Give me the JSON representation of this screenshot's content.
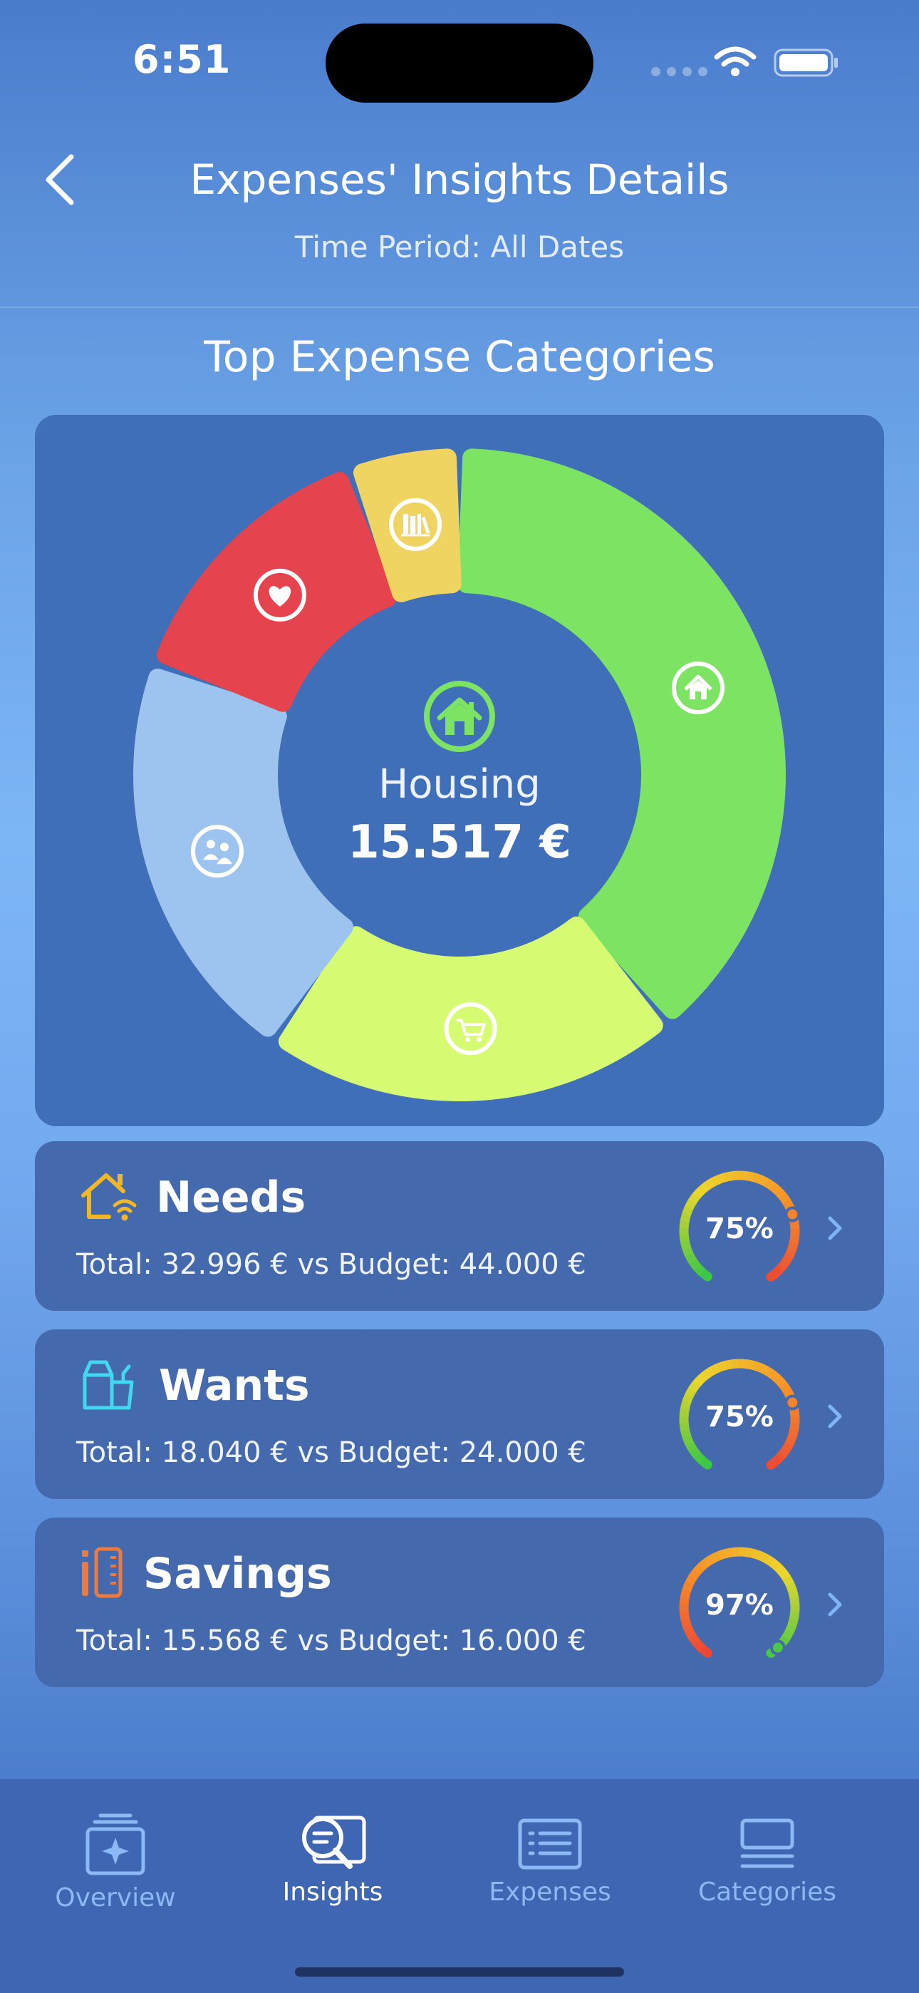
{
  "status_bar": {
    "time": "6:51"
  },
  "header": {
    "title": "Expenses' Insights Details",
    "subtitle": "Time Period: All Dates"
  },
  "section_title": "Top Expense Categories",
  "donut": {
    "selected_label": "Housing",
    "selected_value": "15.517 €",
    "segments": [
      {
        "icon": "house-icon",
        "color": "#7de363"
      },
      {
        "icon": "shopping-cart-icon",
        "color": "#d6fb73"
      },
      {
        "icon": "people-icon",
        "color": "#9cc4ee"
      },
      {
        "icon": "heart-icon",
        "color": "#e5434e"
      },
      {
        "icon": "books-icon",
        "color": "#f0d462"
      }
    ]
  },
  "categories": [
    {
      "name": "Needs",
      "detail": "Total: 32.996 €  vs  Budget: 44.000 €",
      "percent_label": "75%",
      "percent": 75,
      "icon": "house-wifi-icon",
      "icon_color": "#f2b824"
    },
    {
      "name": "Wants",
      "detail": "Total: 18.040 €  vs  Budget: 24.000 €",
      "percent_label": "75%",
      "percent": 75,
      "icon": "shopping-bag-icon",
      "icon_color": "#41d8f0"
    },
    {
      "name": "Savings",
      "detail": "Total: 15.568 €  vs  Budget: 16.000 €",
      "percent_label": "97%",
      "percent": 97,
      "icon": "savings-icon",
      "icon_color": "#f07a3c"
    }
  ],
  "tab_bar": {
    "tabs": [
      {
        "label": "Overview",
        "icon": "overview-icon",
        "active": false
      },
      {
        "label": "Insights",
        "icon": "insights-icon",
        "active": true
      },
      {
        "label": "Expenses",
        "icon": "expenses-list-icon",
        "active": false
      },
      {
        "label": "Categories",
        "icon": "categories-icon",
        "active": false
      }
    ]
  },
  "colors": {
    "card_background": "#3e6fb8",
    "row_background": "#4469ad",
    "inactive_tab": "#8ab9f4",
    "chevron": "#7fb5f5"
  }
}
